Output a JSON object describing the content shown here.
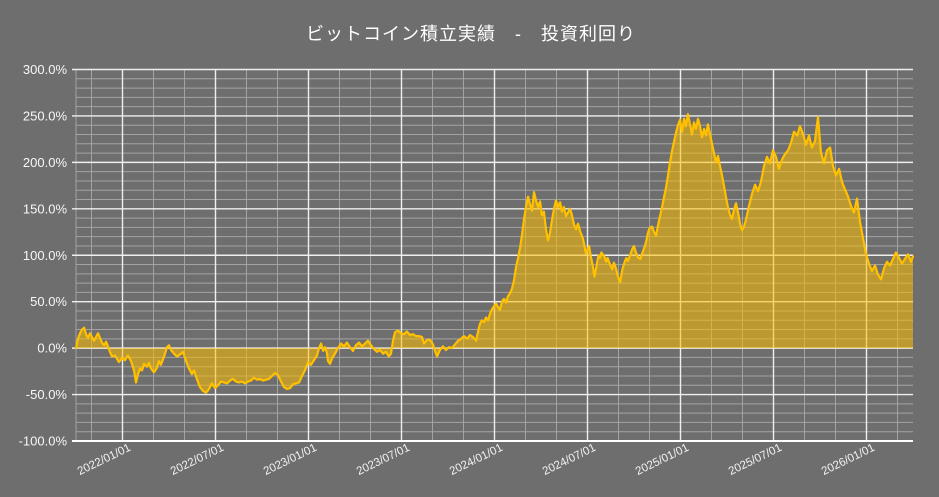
{
  "title": "ビットコイン積立実績　-　投資利回り",
  "colors": {
    "background": "#6e6e6e",
    "line": "#ffc000",
    "fill": "#ffc000",
    "fill_opacity": 0.55,
    "grid_major": "#efefef",
    "grid_minor": "#a3a3a3",
    "axis": "#ffffff",
    "text": "#ffffff"
  },
  "chart_data": {
    "type": "area",
    "title": "ビットコイン積立実績　-　投資利回り",
    "series_name": "投資利回り",
    "x_unit": "months since 2021/10/01",
    "x_range": [
      0,
      54
    ],
    "y_unit": "percent",
    "ylim": [
      -100,
      300
    ],
    "grid": true,
    "legend": "none",
    "y_tick_values": [
      300,
      250,
      200,
      150,
      100,
      50,
      0,
      -50,
      -100
    ],
    "y_tick_labels": [
      "300.0%",
      "250.0%",
      "200.0%",
      "150.0%",
      "100.0%",
      "50.0%",
      "0.0%",
      "-50.0%",
      "-100.0%"
    ],
    "y_minor_step": 10,
    "x_tick_months": [
      3,
      9,
      15,
      21,
      27,
      33,
      39,
      45,
      51
    ],
    "x_tick_labels": [
      "2022/01/01",
      "2022/07/01",
      "2023/01/01",
      "2023/07/01",
      "2024/01/01",
      "2024/07/01",
      "2025/01/01",
      "2025/07/01",
      "2026/01/01"
    ],
    "x_minor_step_months": 2,
    "points": [
      [
        0,
        0
      ],
      [
        0.13,
        10
      ],
      [
        0.26,
        16
      ],
      [
        0.39,
        20
      ],
      [
        0.52,
        22
      ],
      [
        0.65,
        15
      ],
      [
        0.77,
        11
      ],
      [
        0.9,
        16
      ],
      [
        1.03,
        12
      ],
      [
        1.16,
        8
      ],
      [
        1.29,
        12
      ],
      [
        1.42,
        16
      ],
      [
        1.55,
        11
      ],
      [
        1.68,
        6
      ],
      [
        1.81,
        3
      ],
      [
        1.94,
        7
      ],
      [
        2.06,
        2
      ],
      [
        2.19,
        -4
      ],
      [
        2.32,
        -9
      ],
      [
        2.52,
        -8
      ],
      [
        2.77,
        -15
      ],
      [
        2.97,
        -11
      ],
      [
        3.16,
        -13
      ],
      [
        3.35,
        -8
      ],
      [
        3.55,
        -14
      ],
      [
        3.74,
        -24
      ],
      [
        3.87,
        -37
      ],
      [
        4.0,
        -28
      ],
      [
        4.13,
        -22
      ],
      [
        4.26,
        -24
      ],
      [
        4.39,
        -17
      ],
      [
        4.58,
        -20
      ],
      [
        4.71,
        -16
      ],
      [
        4.84,
        -22
      ],
      [
        5.03,
        -26
      ],
      [
        5.23,
        -21
      ],
      [
        5.35,
        -14
      ],
      [
        5.48,
        -18
      ],
      [
        5.61,
        -12
      ],
      [
        5.74,
        -6
      ],
      [
        5.87,
        1
      ],
      [
        6.0,
        3
      ],
      [
        6.13,
        -2
      ],
      [
        6.32,
        -6
      ],
      [
        6.52,
        -9
      ],
      [
        6.71,
        -7
      ],
      [
        6.9,
        -4
      ],
      [
        7.1,
        -14
      ],
      [
        7.29,
        -22
      ],
      [
        7.48,
        -28
      ],
      [
        7.61,
        -24
      ],
      [
        7.81,
        -34
      ],
      [
        8.0,
        -42
      ],
      [
        8.19,
        -46
      ],
      [
        8.39,
        -48
      ],
      [
        8.58,
        -44
      ],
      [
        8.77,
        -38
      ],
      [
        8.97,
        -43
      ],
      [
        9.16,
        -40
      ],
      [
        9.35,
        -36
      ],
      [
        9.55,
        -37
      ],
      [
        9.74,
        -38
      ],
      [
        9.94,
        -35
      ],
      [
        10.13,
        -33
      ],
      [
        10.32,
        -36
      ],
      [
        10.52,
        -37
      ],
      [
        10.71,
        -36
      ],
      [
        10.9,
        -38
      ],
      [
        11.1,
        -36
      ],
      [
        11.29,
        -35
      ],
      [
        11.48,
        -32
      ],
      [
        11.68,
        -34
      ],
      [
        11.87,
        -33
      ],
      [
        12.06,
        -35
      ],
      [
        12.26,
        -34
      ],
      [
        12.45,
        -33
      ],
      [
        12.65,
        -30
      ],
      [
        12.84,
        -27
      ],
      [
        13.03,
        -29
      ],
      [
        13.23,
        -36
      ],
      [
        13.42,
        -42
      ],
      [
        13.61,
        -44
      ],
      [
        13.81,
        -43
      ],
      [
        14.0,
        -39
      ],
      [
        14.19,
        -38
      ],
      [
        14.39,
        -37
      ],
      [
        14.58,
        -30
      ],
      [
        14.77,
        -24
      ],
      [
        14.97,
        -15
      ],
      [
        15.16,
        -18
      ],
      [
        15.35,
        -13
      ],
      [
        15.55,
        -8
      ],
      [
        15.68,
        0
      ],
      [
        15.81,
        5
      ],
      [
        15.94,
        -3
      ],
      [
        16.06,
        1
      ],
      [
        16.19,
        -5
      ],
      [
        16.26,
        -14
      ],
      [
        16.39,
        -17
      ],
      [
        16.52,
        -11
      ],
      [
        16.71,
        -6
      ],
      [
        16.9,
        0
      ],
      [
        17.1,
        5
      ],
      [
        17.29,
        2
      ],
      [
        17.48,
        6
      ],
      [
        17.68,
        1
      ],
      [
        17.87,
        -3
      ],
      [
        18.06,
        3
      ],
      [
        18.26,
        6
      ],
      [
        18.45,
        2
      ],
      [
        18.65,
        5
      ],
      [
        18.84,
        8
      ],
      [
        19.03,
        3
      ],
      [
        19.23,
        -1
      ],
      [
        19.42,
        -4
      ],
      [
        19.61,
        -2
      ],
      [
        19.81,
        -6
      ],
      [
        20.0,
        -4
      ],
      [
        20.19,
        -9
      ],
      [
        20.32,
        -6
      ],
      [
        20.45,
        8
      ],
      [
        20.58,
        17
      ],
      [
        20.77,
        19
      ],
      [
        20.97,
        16
      ],
      [
        21.16,
        15
      ],
      [
        21.35,
        18
      ],
      [
        21.55,
        14
      ],
      [
        21.74,
        15
      ],
      [
        21.94,
        13
      ],
      [
        22.13,
        13
      ],
      [
        22.32,
        12
      ],
      [
        22.45,
        5
      ],
      [
        22.65,
        9
      ],
      [
        22.84,
        9
      ],
      [
        23.03,
        4
      ],
      [
        23.16,
        -3
      ],
      [
        23.29,
        -9
      ],
      [
        23.48,
        -2
      ],
      [
        23.68,
        2
      ],
      [
        23.87,
        -2
      ],
      [
        24.06,
        1
      ],
      [
        24.26,
        0
      ],
      [
        24.45,
        4
      ],
      [
        24.65,
        8
      ],
      [
        24.84,
        10
      ],
      [
        25.03,
        13
      ],
      [
        25.23,
        10
      ],
      [
        25.42,
        14
      ],
      [
        25.61,
        12
      ],
      [
        25.81,
        8
      ],
      [
        25.94,
        18
      ],
      [
        26.06,
        26
      ],
      [
        26.19,
        30
      ],
      [
        26.32,
        28
      ],
      [
        26.45,
        33
      ],
      [
        26.58,
        30
      ],
      [
        26.71,
        37
      ],
      [
        26.84,
        42
      ],
      [
        26.97,
        45
      ],
      [
        27.1,
        48
      ],
      [
        27.23,
        44
      ],
      [
        27.35,
        41
      ],
      [
        27.48,
        50
      ],
      [
        27.61,
        53
      ],
      [
        27.74,
        49
      ],
      [
        27.87,
        56
      ],
      [
        28.0,
        59
      ],
      [
        28.13,
        64
      ],
      [
        28.26,
        73
      ],
      [
        28.39,
        87
      ],
      [
        28.52,
        97
      ],
      [
        28.65,
        108
      ],
      [
        28.77,
        121
      ],
      [
        28.9,
        139
      ],
      [
        29.03,
        152
      ],
      [
        29.16,
        163
      ],
      [
        29.29,
        155
      ],
      [
        29.42,
        148
      ],
      [
        29.55,
        168
      ],
      [
        29.68,
        159
      ],
      [
        29.81,
        152
      ],
      [
        29.94,
        158
      ],
      [
        30.06,
        143
      ],
      [
        30.19,
        147
      ],
      [
        30.32,
        128
      ],
      [
        30.45,
        116
      ],
      [
        30.58,
        124
      ],
      [
        30.71,
        138
      ],
      [
        30.84,
        150
      ],
      [
        30.97,
        159
      ],
      [
        31.1,
        152
      ],
      [
        31.23,
        157
      ],
      [
        31.35,
        147
      ],
      [
        31.48,
        152
      ],
      [
        31.61,
        142
      ],
      [
        31.74,
        146
      ],
      [
        31.87,
        150
      ],
      [
        32.0,
        143
      ],
      [
        32.13,
        133
      ],
      [
        32.26,
        128
      ],
      [
        32.39,
        134
      ],
      [
        32.52,
        126
      ],
      [
        32.7,
        118
      ],
      [
        32.9,
        102
      ],
      [
        33.1,
        110
      ],
      [
        33.2,
        100
      ],
      [
        33.35,
        88
      ],
      [
        33.45,
        77
      ],
      [
        33.6,
        90
      ],
      [
        33.7,
        100
      ],
      [
        33.8,
        97
      ],
      [
        33.9,
        103
      ],
      [
        34.1,
        98
      ],
      [
        34.2,
        93
      ],
      [
        34.3,
        97
      ],
      [
        34.45,
        90
      ],
      [
        34.6,
        85
      ],
      [
        34.7,
        92
      ],
      [
        34.8,
        88
      ],
      [
        34.95,
        78
      ],
      [
        35.1,
        71
      ],
      [
        35.25,
        85
      ],
      [
        35.4,
        93
      ],
      [
        35.5,
        97
      ],
      [
        35.6,
        94
      ],
      [
        35.75,
        100
      ],
      [
        35.9,
        107
      ],
      [
        36.0,
        110
      ],
      [
        36.1,
        104
      ],
      [
        36.25,
        98
      ],
      [
        36.4,
        96
      ],
      [
        36.55,
        103
      ],
      [
        36.7,
        110
      ],
      [
        36.8,
        116
      ],
      [
        36.9,
        124
      ],
      [
        37.0,
        129
      ],
      [
        37.16,
        131
      ],
      [
        37.29,
        125
      ],
      [
        37.42,
        121
      ],
      [
        37.55,
        132
      ],
      [
        37.68,
        142
      ],
      [
        37.81,
        152
      ],
      [
        37.94,
        163
      ],
      [
        38.06,
        172
      ],
      [
        38.19,
        185
      ],
      [
        38.32,
        200
      ],
      [
        38.45,
        212
      ],
      [
        38.58,
        222
      ],
      [
        38.71,
        232
      ],
      [
        38.84,
        240
      ],
      [
        38.97,
        246
      ],
      [
        39.1,
        233
      ],
      [
        39.23,
        247
      ],
      [
        39.35,
        239
      ],
      [
        39.48,
        252
      ],
      [
        39.61,
        241
      ],
      [
        39.74,
        230
      ],
      [
        39.87,
        243
      ],
      [
        40.0,
        236
      ],
      [
        40.13,
        247
      ],
      [
        40.26,
        239
      ],
      [
        40.39,
        227
      ],
      [
        40.52,
        236
      ],
      [
        40.65,
        229
      ],
      [
        40.77,
        241
      ],
      [
        40.9,
        231
      ],
      [
        41.03,
        220
      ],
      [
        41.16,
        210
      ],
      [
        41.29,
        200
      ],
      [
        41.42,
        207
      ],
      [
        41.55,
        196
      ],
      [
        41.68,
        186
      ],
      [
        41.81,
        174
      ],
      [
        41.94,
        162
      ],
      [
        42.06,
        152
      ],
      [
        42.19,
        144
      ],
      [
        42.32,
        139
      ],
      [
        42.45,
        149
      ],
      [
        42.58,
        156
      ],
      [
        42.71,
        146
      ],
      [
        42.84,
        134
      ],
      [
        42.97,
        127
      ],
      [
        43.1,
        131
      ],
      [
        43.23,
        139
      ],
      [
        43.42,
        153
      ],
      [
        43.61,
        166
      ],
      [
        43.81,
        176
      ],
      [
        44.0,
        169
      ],
      [
        44.19,
        179
      ],
      [
        44.39,
        196
      ],
      [
        44.58,
        206
      ],
      [
        44.77,
        199
      ],
      [
        44.97,
        213
      ],
      [
        45.16,
        206
      ],
      [
        45.35,
        193
      ],
      [
        45.55,
        203
      ],
      [
        45.74,
        209
      ],
      [
        45.94,
        213
      ],
      [
        46.13,
        221
      ],
      [
        46.32,
        233
      ],
      [
        46.52,
        229
      ],
      [
        46.71,
        239
      ],
      [
        46.9,
        231
      ],
      [
        47.1,
        219
      ],
      [
        47.29,
        229
      ],
      [
        47.48,
        216
      ],
      [
        47.68,
        223
      ],
      [
        47.87,
        249
      ],
      [
        48.06,
        211
      ],
      [
        48.26,
        199
      ],
      [
        48.45,
        213
      ],
      [
        48.65,
        216
      ],
      [
        48.84,
        196
      ],
      [
        49.03,
        186
      ],
      [
        49.23,
        193
      ],
      [
        49.42,
        179
      ],
      [
        49.61,
        171
      ],
      [
        49.81,
        163
      ],
      [
        50.0,
        153
      ],
      [
        50.19,
        146
      ],
      [
        50.39,
        161
      ],
      [
        50.58,
        136
      ],
      [
        50.77,
        119
      ],
      [
        50.97,
        101
      ],
      [
        51.16,
        91
      ],
      [
        51.35,
        83
      ],
      [
        51.55,
        89
      ],
      [
        51.74,
        79
      ],
      [
        51.94,
        74
      ],
      [
        52.13,
        86
      ],
      [
        52.32,
        93
      ],
      [
        52.52,
        89
      ],
      [
        52.71,
        96
      ],
      [
        52.9,
        103
      ],
      [
        53.1,
        97
      ],
      [
        53.29,
        91
      ],
      [
        53.48,
        96
      ],
      [
        53.68,
        101
      ],
      [
        53.87,
        93
      ],
      [
        54.0,
        99
      ]
    ]
  }
}
